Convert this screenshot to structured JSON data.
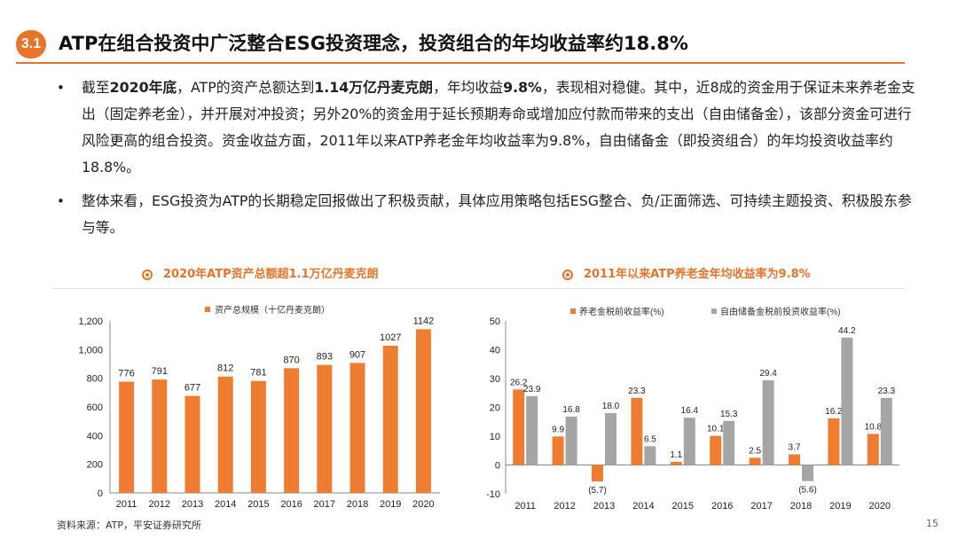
{
  "header": {
    "section_number": "3.1",
    "title": "ATP在组合投资中广泛整合ESG投资理念，投资组合的年均收益率约18.8%"
  },
  "bullets": [
    {
      "parts": [
        {
          "t": "截至",
          "b": false
        },
        {
          "t": "2020年底",
          "b": true
        },
        {
          "t": "，ATP的资产总额达到",
          "b": false
        },
        {
          "t": "1.14万亿丹麦克朗",
          "b": true
        },
        {
          "t": "，年均收益",
          "b": false
        },
        {
          "t": "9.8%",
          "b": true
        },
        {
          "t": "，表现相对稳健。其中，近8成的资金用于保证未来养老金支出（固定养老金），并开展对冲投资；另外20%的资金用于延长预期寿命或增加应付款而带来的支出（自由储备金），该部分资金可进行风险更高的组合投资。资金收益方面，2011年以来ATP养老金年均收益率为9.8%，自由储备金（即投资组合）的年均投资收益率约18.8%。",
          "b": false
        }
      ]
    },
    {
      "parts": [
        {
          "t": "整体来看，ESG投资为ATP的长期稳定回报做出了积极贡献，具体应用策略包括ESG整合、负/正面筛选、可持续主题投资、积极股东参与等。",
          "b": false
        }
      ]
    }
  ],
  "bullet_symbol": "•",
  "charts_meta": {
    "left_title": "2020年ATP资产总额超1.1万亿丹麦克朗",
    "right_title": "2011年以来ATP养老金年均收益率为9.8%"
  },
  "colors": {
    "accent": "#e8742a",
    "orange_bar": "#ee7d31",
    "gray_bar": "#a5a5a5"
  },
  "chart_data": [
    {
      "type": "bar",
      "title": "2020年ATP资产总额超1.1万亿丹麦克朗",
      "categories": [
        "2011",
        "2012",
        "2013",
        "2014",
        "2015",
        "2016",
        "2017",
        "2018",
        "2019",
        "2020"
      ],
      "series": [
        {
          "name": "资产总规模（十亿丹麦克朗）",
          "values": [
            776,
            791,
            677,
            812,
            781,
            870,
            893,
            907,
            1027,
            1142
          ]
        }
      ],
      "ylim": [
        0,
        1200
      ],
      "yticks": [
        0,
        200,
        400,
        600,
        800,
        1000,
        1200
      ],
      "ytick_labels": [
        "0",
        "200",
        "400",
        "600",
        "800",
        "1,000",
        "1,200"
      ],
      "value_labels": [
        "776",
        "791",
        "677",
        "812",
        "781",
        "870",
        "893",
        "907",
        "1027",
        "1142"
      ],
      "legend": "top"
    },
    {
      "type": "bar",
      "title": "2011年以来ATP养老金年均收益率为9.8%",
      "categories": [
        "2011",
        "2012",
        "2013",
        "2014",
        "2015",
        "2016",
        "2017",
        "2018",
        "2019",
        "2020"
      ],
      "series": [
        {
          "name": "养老金税前收益率(%)",
          "values": [
            26.2,
            9.9,
            -5.7,
            23.3,
            1.1,
            10.1,
            2.5,
            3.7,
            16.2,
            10.8
          ],
          "labels": [
            "26.2",
            "9.9",
            "(5.7)",
            "23.3",
            "1.1",
            "10.1",
            "2.5",
            "3.7",
            "16.2",
            "10.8"
          ]
        },
        {
          "name": "自由储备金税前投资收益率(%)",
          "values": [
            23.9,
            16.8,
            18.0,
            6.5,
            16.4,
            15.3,
            29.4,
            -5.6,
            44.2,
            23.3
          ],
          "labels": [
            "23.9",
            "16.8",
            "18.0",
            "6.5",
            "16.4",
            "15.3",
            "29.4",
            "(5.6)",
            "44.2",
            "23.3"
          ]
        }
      ],
      "ylim": [
        -10,
        50
      ],
      "yticks": [
        -10,
        0,
        10,
        20,
        30,
        40,
        50
      ],
      "ytick_labels": [
        "-10",
        "0",
        "10",
        "20",
        "30",
        "40",
        "50"
      ],
      "legend": "top"
    }
  ],
  "footer": {
    "source": "资料来源：ATP，平安证券研究所",
    "page_number": "15"
  }
}
